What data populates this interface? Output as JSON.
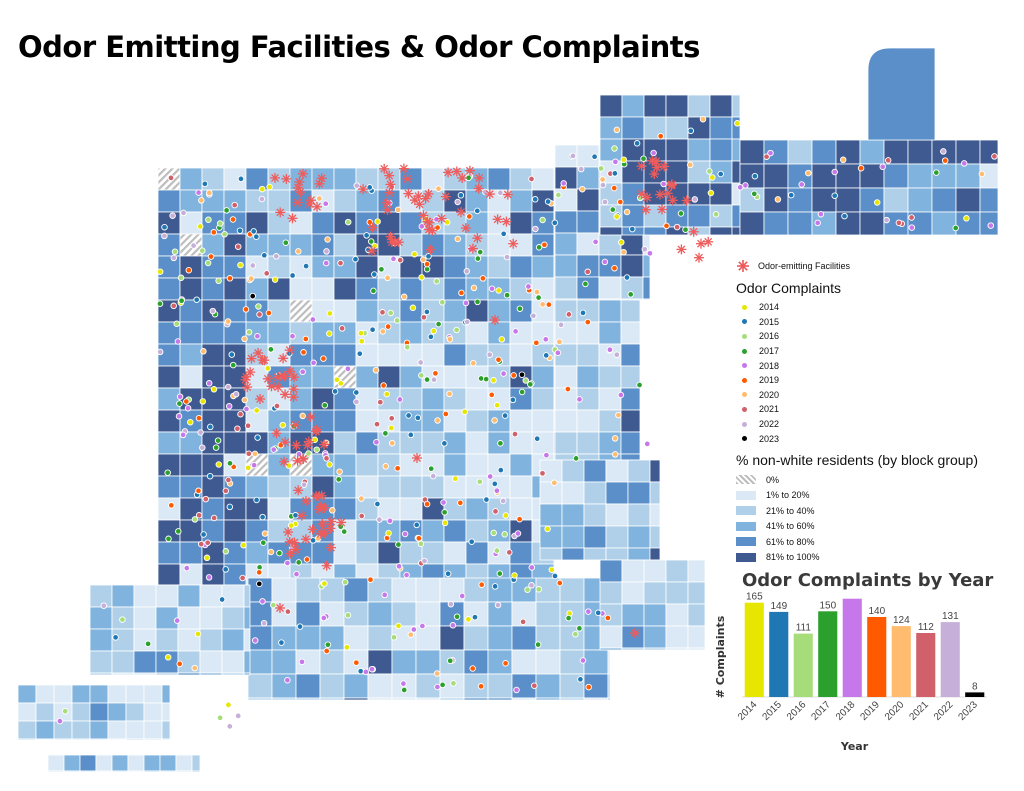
{
  "title": "Odor Emitting Facilities & Odor Complaints",
  "legend": {
    "facilities_label": "Odor-emitting Facilities",
    "complaints_title": "Odor Complaints",
    "years": [
      {
        "label": "2014",
        "color": "#e6e600"
      },
      {
        "label": "2015",
        "color": "#1f77b4"
      },
      {
        "label": "2016",
        "color": "#a6dd7a"
      },
      {
        "label": "2017",
        "color": "#2ca02c"
      },
      {
        "label": "2018",
        "color": "#c678ea"
      },
      {
        "label": "2019",
        "color": "#ff5a00"
      },
      {
        "label": "2020",
        "color": "#ffbb6e"
      },
      {
        "label": "2021",
        "color": "#d0606a"
      },
      {
        "label": "2022",
        "color": "#c6afd8"
      },
      {
        "label": "2023",
        "color": "#000000"
      }
    ],
    "pct_title": "% non-white residents (by block group)",
    "pct_classes": [
      {
        "label": "0%",
        "color": "hatch"
      },
      {
        "label": "1% to 20%",
        "color": "#dbe8f5"
      },
      {
        "label": "21% to 40%",
        "color": "#b0d0ea"
      },
      {
        "label": "41% to 60%",
        "color": "#80b3dd"
      },
      {
        "label": "61% to 80%",
        "color": "#5a8fc9"
      },
      {
        "label": "81% to 100%",
        "color": "#3e5a91"
      }
    ]
  },
  "chart_data": {
    "type": "bar",
    "title": "Odor Complaints by Year",
    "xlabel": "Year",
    "ylabel": "# Complaints",
    "categories": [
      "2014",
      "2015",
      "2016",
      "2017",
      "2018",
      "2019",
      "2020",
      "2021",
      "2022",
      "2023"
    ],
    "values": [
      165,
      149,
      111,
      150,
      172,
      140,
      124,
      112,
      131,
      8
    ],
    "value_labels": [
      "165",
      "149",
      "111",
      "150",
      "",
      "140",
      "124",
      "112",
      "131",
      "8"
    ],
    "colors": [
      "#e6e600",
      "#1f77b4",
      "#a6dd7a",
      "#2ca02c",
      "#c678ea",
      "#ff5a00",
      "#ffbb6e",
      "#d0606a",
      "#c6afd8",
      "#000000"
    ],
    "ylim": [
      0,
      175
    ]
  }
}
